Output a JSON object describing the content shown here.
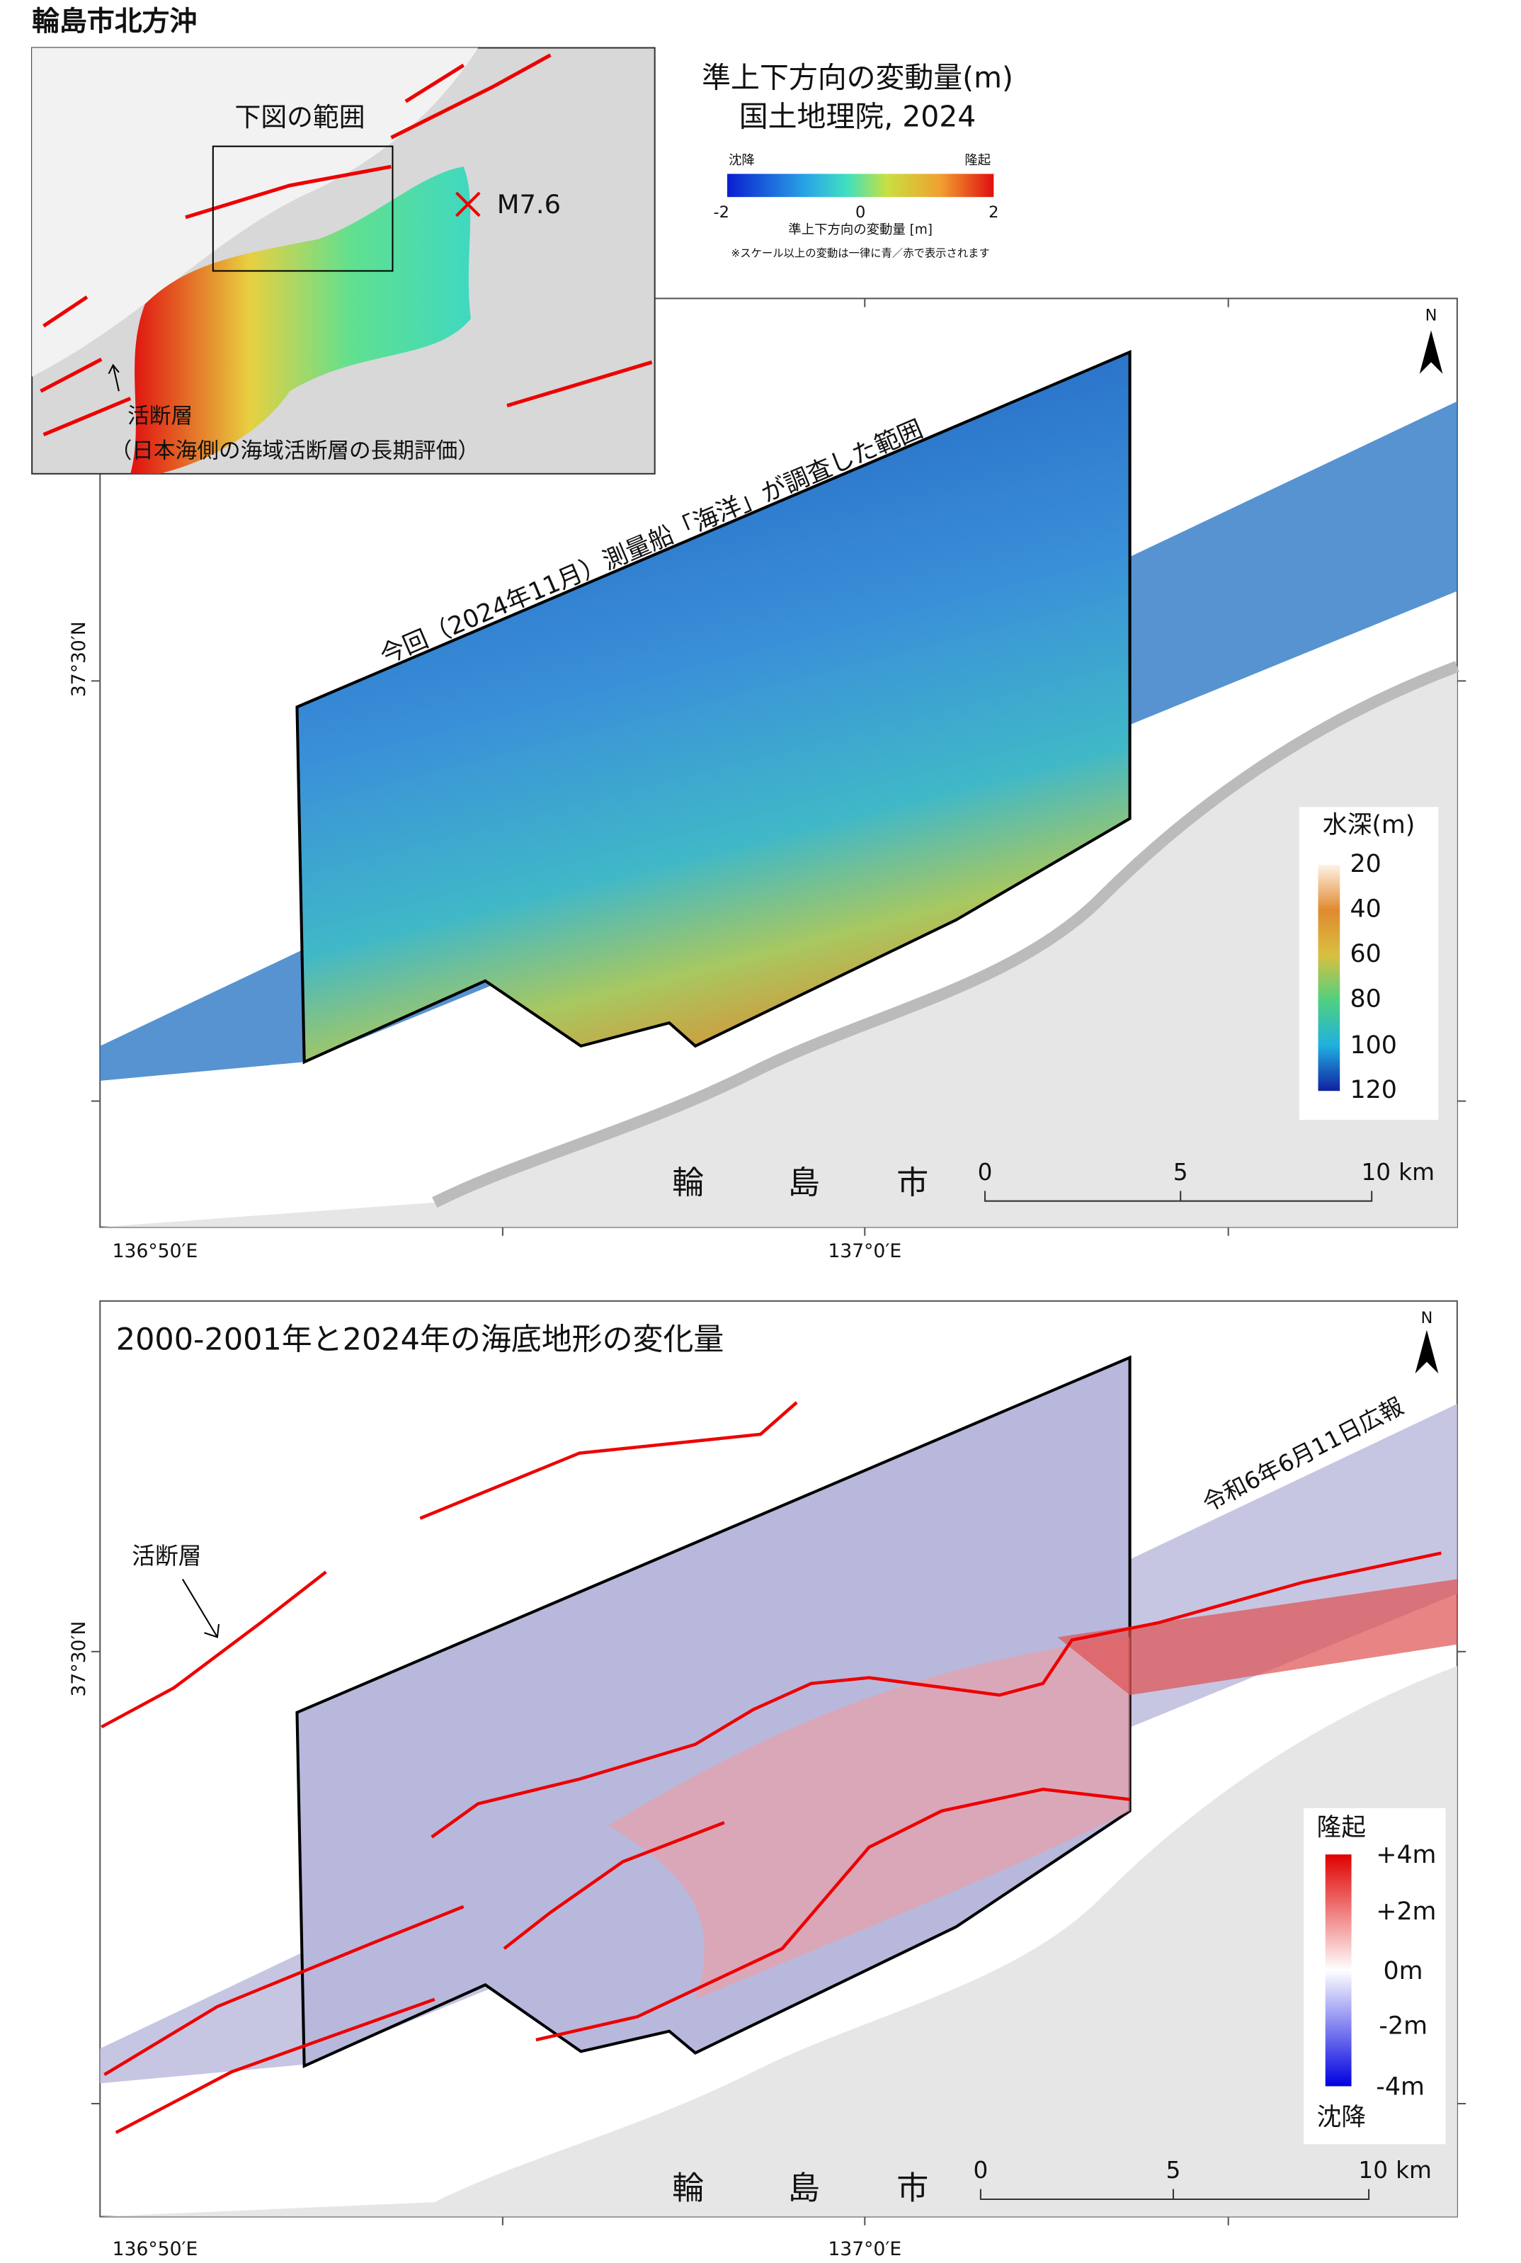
{
  "title": "輪島市北方沖",
  "inset": {
    "range_label": "下図の範囲",
    "epicenter": "M7.6",
    "fault_label": "活断層",
    "fault_source": "（日本海側の海域活断層の長期評価）"
  },
  "displacement_legend": {
    "title": "準上下方向の変動量(m)",
    "source": "国土地理院, 2024",
    "subsidence": "沈降",
    "uplift": "隆起",
    "ticks": [
      "-2",
      "0",
      "2"
    ],
    "axis_label": "準上下方向の変動量 [m]",
    "note": "※スケール以上の変動は一律に青／赤で表示されます"
  },
  "panel_top": {
    "survey_label": "今回（2024年11月）測量船「海洋」が調査した範囲",
    "depth_legend": {
      "title": "水深(m)",
      "ticks": [
        "20",
        "40",
        "60",
        "80",
        "100",
        "120"
      ]
    },
    "city": [
      "輪",
      "島",
      "市"
    ],
    "scale": {
      "ticks": [
        "0",
        "5",
        "10"
      ],
      "unit": "km"
    },
    "north": "N",
    "lat": "37°30′N",
    "lon": [
      "136°50′E",
      "137°0′E"
    ]
  },
  "panel_bottom": {
    "title": "2000-2001年と2024年の海底地形の変化量",
    "fault_label": "活断層",
    "prior_report": "令和6年6月11日広報",
    "legend": {
      "uplift": "隆起",
      "subsidence": "沈降",
      "ticks": [
        "+4m",
        "+2m",
        "0m",
        "-2m",
        "-4m"
      ]
    },
    "city": [
      "輪",
      "島",
      "市"
    ],
    "scale": {
      "ticks": [
        "0",
        "5",
        "10"
      ],
      "unit": "km"
    },
    "north": "N",
    "lat": "37°30′N",
    "lon": [
      "136°50′E",
      "137°0′E"
    ]
  }
}
